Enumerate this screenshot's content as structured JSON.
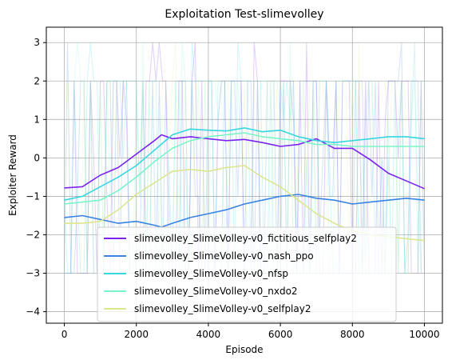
{
  "chart_data": {
    "type": "line",
    "title": "Exploitation Test-slimevolley",
    "xlabel": "Episode",
    "ylabel": "Exploiter Reward",
    "xlim": [
      -500,
      10500
    ],
    "ylim": [
      -4.3,
      3.4
    ],
    "xticks": [
      0,
      2000,
      4000,
      6000,
      8000,
      10000
    ],
    "yticks": [
      -4,
      -3,
      -2,
      -1,
      0,
      1,
      2,
      3
    ],
    "grid": true,
    "legend_position": "lower-center",
    "raw_band": {
      "min": -3,
      "max": 2,
      "spike_max": 3
    },
    "series": [
      {
        "name": "slimevolley_SlimeVolley-v0_fictitious_selfplay2",
        "color": "#7b22ee",
        "x": [
          0,
          500,
          1000,
          1500,
          2000,
          2500,
          2700,
          3000,
          3500,
          4000,
          4500,
          5000,
          5500,
          6000,
          6500,
          7000,
          7500,
          8000,
          8500,
          9000,
          9500,
          10000
        ],
        "values": [
          -0.78,
          -0.75,
          -0.45,
          -0.25,
          0.1,
          0.45,
          0.6,
          0.5,
          0.55,
          0.5,
          0.45,
          0.48,
          0.4,
          0.3,
          0.35,
          0.5,
          0.25,
          0.25,
          -0.05,
          -0.4,
          -0.6,
          -0.8
        ]
      },
      {
        "name": "slimevolley_SlimeVolley-v0_nash_ppo",
        "color": "#3a82e4",
        "x": [
          0,
          500,
          1000,
          1500,
          2000,
          2500,
          2700,
          3000,
          3500,
          4000,
          4500,
          5000,
          5500,
          6000,
          6500,
          7000,
          7500,
          8000,
          8500,
          9000,
          9500,
          10000
        ],
        "values": [
          -1.55,
          -1.5,
          -1.6,
          -1.7,
          -1.65,
          -1.75,
          -1.8,
          -1.7,
          -1.55,
          -1.45,
          -1.35,
          -1.2,
          -1.1,
          -1.0,
          -0.95,
          -1.05,
          -1.1,
          -1.2,
          -1.15,
          -1.1,
          -1.05,
          -1.1
        ]
      },
      {
        "name": "slimevolley_SlimeVolley-v0_nfsp",
        "color": "#36d7de",
        "x": [
          0,
          500,
          1000,
          1500,
          2000,
          2500,
          3000,
          3500,
          4000,
          4500,
          5000,
          5500,
          6000,
          6500,
          7000,
          7500,
          8000,
          8500,
          9000,
          9500,
          10000
        ],
        "values": [
          -1.1,
          -1.0,
          -0.75,
          -0.5,
          -0.2,
          0.2,
          0.6,
          0.75,
          0.72,
          0.7,
          0.78,
          0.68,
          0.72,
          0.55,
          0.45,
          0.4,
          0.45,
          0.5,
          0.55,
          0.55,
          0.5
        ]
      },
      {
        "name": "slimevolley_SlimeVolley-v0_nxdo2",
        "color": "#7af5c8",
        "x": [
          0,
          500,
          1000,
          1500,
          2000,
          2500,
          3000,
          3500,
          4000,
          4500,
          5000,
          5500,
          6000,
          6500,
          7000,
          7500,
          8000,
          8500,
          9000,
          9500,
          10000
        ],
        "values": [
          -1.2,
          -1.15,
          -1.1,
          -0.85,
          -0.5,
          -0.1,
          0.25,
          0.45,
          0.55,
          0.6,
          0.65,
          0.55,
          0.5,
          0.45,
          0.35,
          0.35,
          0.3,
          0.3,
          0.3,
          0.3,
          0.3
        ]
      },
      {
        "name": "slimevolley_SlimeVolley-v0_selfplay2",
        "color": "#dce68f",
        "x": [
          0,
          500,
          1000,
          1500,
          2000,
          2500,
          3000,
          3500,
          4000,
          4500,
          5000,
          5500,
          6000,
          6500,
          7000,
          7500,
          8000,
          8500,
          9000,
          9500,
          10000
        ],
        "values": [
          -1.7,
          -1.7,
          -1.65,
          -1.35,
          -0.95,
          -0.65,
          -0.35,
          -0.3,
          -0.35,
          -0.25,
          -0.2,
          -0.5,
          -0.75,
          -1.1,
          -1.45,
          -1.7,
          -1.9,
          -2.0,
          -2.05,
          -2.1,
          -2.15
        ]
      }
    ]
  }
}
